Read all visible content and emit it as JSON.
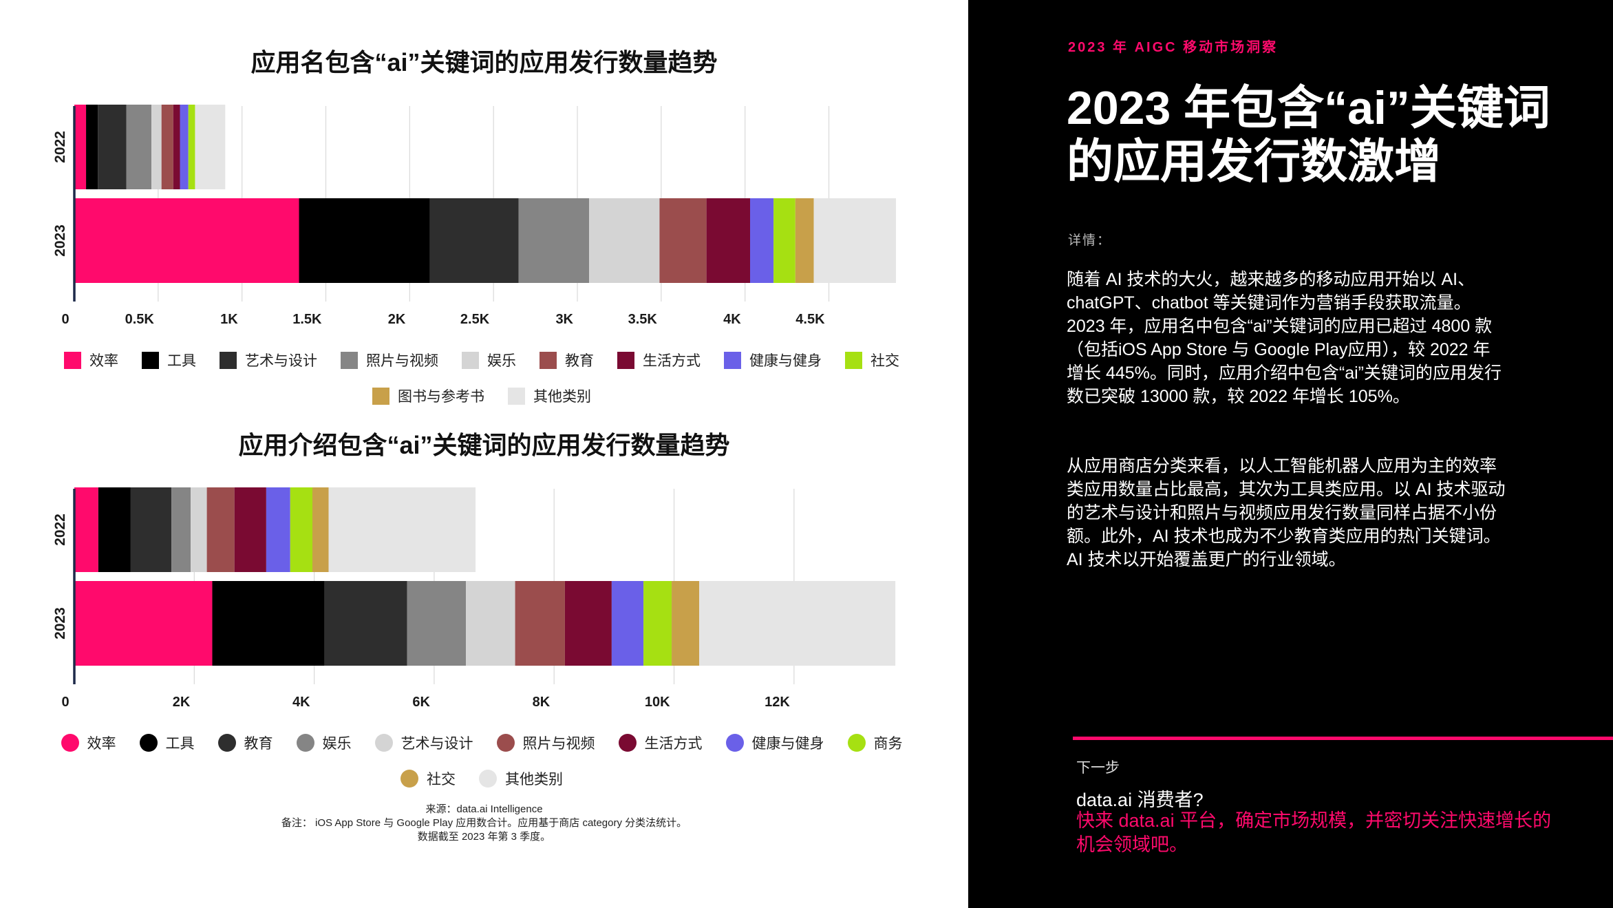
{
  "colors": {
    "accent": "#ff0a6c",
    "axis": "#1e2a4a",
    "gridline": "#d9d9d9"
  },
  "left": {
    "notes": {
      "source": "来源：data.ai Intelligence",
      "note": "备注： iOS App Store 与 Google Play 应用数合计。应用基于商店 category 分类法统计。",
      "cutoff": "数据截至 2023 年第 3 季度。"
    }
  },
  "chart_data": [
    {
      "type": "bar",
      "orientation": "horizontal",
      "stacked": true,
      "title": "应用名包含“ai”关键词的应用发行数量趋势",
      "categories": [
        "2022",
        "2023"
      ],
      "xlim": [
        0,
        4900
      ],
      "xticks": [
        0,
        500,
        1000,
        1500,
        2000,
        2500,
        3000,
        3500,
        4000,
        4500
      ],
      "xtick_labels": [
        "0",
        "0.5K",
        "1K",
        "1.5K",
        "2K",
        "2.5K",
        "3K",
        "3.5K",
        "4K",
        "4.5K"
      ],
      "grid": true,
      "legend_position": "bottom",
      "legend_marker": "square",
      "series": [
        {
          "name": "效率",
          "color": "#ff0a6c",
          "values": [
            70,
            1340
          ]
        },
        {
          "name": "工具",
          "color": "#000000",
          "values": [
            70,
            780
          ]
        },
        {
          "name": "艺术与设计",
          "color": "#2e2e2e",
          "values": [
            170,
            530
          ]
        },
        {
          "name": "照片与视频",
          "color": "#858585",
          "values": [
            150,
            420
          ]
        },
        {
          "name": "娱乐",
          "color": "#d4d4d4",
          "values": [
            60,
            420
          ]
        },
        {
          "name": "教育",
          "color": "#9b4d4d",
          "values": [
            70,
            280
          ]
        },
        {
          "name": "生活方式",
          "color": "#7a0a32",
          "values": [
            40,
            260
          ]
        },
        {
          "name": "健康与健身",
          "color": "#6a60e8",
          "values": [
            50,
            140
          ]
        },
        {
          "name": "社交",
          "color": "#a6e012",
          "values": [
            40,
            130
          ]
        },
        {
          "name": "图书与参考书",
          "color": "#c8a04a",
          "values": [
            0,
            110
          ]
        },
        {
          "name": "其他类别",
          "color": "#e5e5e5",
          "values": [
            180,
            490
          ]
        }
      ]
    },
    {
      "type": "bar",
      "orientation": "horizontal",
      "stacked": true,
      "title": "应用介绍包含“ai”关键词的应用发行数量趋势",
      "categories": [
        "2022",
        "2023"
      ],
      "xlim": [
        0,
        13700
      ],
      "xticks": [
        0,
        2000,
        4000,
        6000,
        8000,
        10000,
        12000
      ],
      "xtick_labels": [
        "0",
        "2K",
        "4K",
        "6K",
        "8K",
        "10K",
        "12K"
      ],
      "grid": true,
      "legend_position": "bottom",
      "legend_marker": "circle",
      "series": [
        {
          "name": "效率",
          "color": "#ff0a6c",
          "values": [
            400,
            2300
          ]
        },
        {
          "name": "工具",
          "color": "#000000",
          "values": [
            540,
            1870
          ]
        },
        {
          "name": "教育",
          "color": "#2e2e2e",
          "values": [
            680,
            1380
          ]
        },
        {
          "name": "娱乐",
          "color": "#858585",
          "values": [
            320,
            980
          ]
        },
        {
          "name": "艺术与设计",
          "color": "#d4d4d4",
          "values": [
            270,
            820
          ]
        },
        {
          "name": "照片与视频",
          "color": "#9b4d4d",
          "values": [
            460,
            830
          ]
        },
        {
          "name": "生活方式",
          "color": "#7a0a32",
          "values": [
            530,
            780
          ]
        },
        {
          "name": "健康与健身",
          "color": "#6a60e8",
          "values": [
            400,
            530
          ]
        },
        {
          "name": "商务",
          "color": "#a6e012",
          "values": [
            370,
            470
          ]
        },
        {
          "name": "社交",
          "color": "#c8a04a",
          "values": [
            270,
            460
          ]
        },
        {
          "name": "其他类别",
          "color": "#e5e5e5",
          "values": [
            2450,
            3270
          ]
        }
      ]
    }
  ],
  "right": {
    "eyebrow": "2023 年 AIGC 移动市场洞察",
    "headline": "2023 年包含“ai”关键词的应用发行数激增",
    "detail_label": "详情：",
    "paragraph1": "随着 AI 技术的大火，越来越多的移动应用开始以 AI、chatGPT、chatbot 等关键词作为营销手段获取流量。2023 年，应用名中包含“ai”关键词的应用已超过 4800 款（包括iOS App Store 与 Google Play应用），较 2022 年增长 445%。同时，应用介绍中包含“ai”关键词的应用发行数已突破 13000 款，较 2022 年增长 105%。",
    "paragraph2": "从应用商店分类来看，以人工智能机器人应用为主的效率类应用数量占比最高，其次为工具类应用。以 AI 技术驱动的艺术与设计和照片与视频应用发行数量同样占据不小份额。此外，AI 技术也成为不少教育类应用的热门关键词。AI 技术以开始覆盖更广的行业领域。",
    "next_label": "下一步",
    "cta_question": "data.ai 消费者?",
    "cta_text": "快来 data.ai 平台，确定市场规模，并密切关注快速增长的机会领域吧。"
  }
}
